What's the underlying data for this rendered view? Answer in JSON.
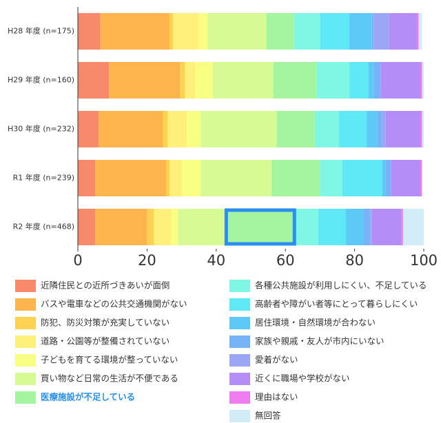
{
  "chart_data": {
    "type": "stacked-bar-horizontal",
    "categories": [
      "H28 年度 (n=175)",
      "H29 年度 (n=160)",
      "H30 年度 (n=232)",
      "R1 年度 (n=239)",
      "R2 年度 (n=468)"
    ],
    "xlim": [
      0,
      100
    ],
    "xticks": [
      0,
      20,
      40,
      60,
      80,
      100
    ],
    "highlight_color": "#2a8ff0",
    "series": [
      {
        "name": "近隣住民との近所づきあいが面倒",
        "color": "#f78a6b",
        "values": [
          6.5,
          9,
          6,
          5,
          5
        ]
      },
      {
        "name": "バスや電車などの公共交通機関がない",
        "color": "#ffb54d",
        "values": [
          20,
          20.5,
          18.5,
          20.5,
          15
        ]
      },
      {
        "name": "防犯、防災対策が充実していない",
        "color": "#ffd253",
        "values": [
          1,
          1.5,
          1.5,
          1,
          2
        ]
      },
      {
        "name": "道路・公園等が整備されていない",
        "color": "#fff07c",
        "values": [
          7.5,
          3,
          5.5,
          3.5,
          5
        ]
      },
      {
        "name": "子どもを育てる環境が整っていない",
        "color": "#f8ff82",
        "values": [
          2.5,
          5,
          4,
          5.5,
          2
        ]
      },
      {
        "name": "買い物など日常の生活が不便である",
        "color": "#d8fa95",
        "values": [
          17,
          17.5,
          22,
          20.5,
          13.5
        ]
      },
      {
        "name": "医療施設が不足している",
        "color": "#a5f5a0",
        "values": [
          8,
          12.5,
          11,
          14,
          20.5
        ],
        "highlight_index": 4
      },
      {
        "name": "各種公共施設が利用しにくい、不足している",
        "color": "#80f7e4",
        "values": [
          7.5,
          9.5,
          7,
          6.5,
          6.5
        ]
      },
      {
        "name": "高齢者や障がい者等にとって暮らしにくい",
        "color": "#5fe8f6",
        "values": [
          8.5,
          5.5,
          8,
          11.5,
          8
        ]
      },
      {
        "name": "居住環境・自然環境が合わない",
        "color": "#5cc9f6",
        "values": [
          6.5,
          1.5,
          3,
          1,
          5
        ]
      },
      {
        "name": "家族や親戚・友人が市内にいない",
        "color": "#74b4f7",
        "values": [
          0.5,
          2,
          1.5,
          1.5,
          2
        ]
      },
      {
        "name": "愛着がない",
        "color": "#9ba7f6",
        "values": [
          4.5,
          0,
          1,
          0,
          0.5
        ]
      },
      {
        "name": "近くに職場や学校がない",
        "color": "#b48df6",
        "values": [
          8,
          11.5,
          10,
          8.5,
          8.5
        ]
      },
      {
        "name": "理由はない",
        "color": "#f07df0",
        "values": [
          0.5,
          0.5,
          0.5,
          0.5,
          0.5
        ]
      },
      {
        "name": "無回答",
        "color": "#d2ecf8",
        "values": [
          1,
          0.5,
          0.5,
          0,
          6
        ]
      }
    ]
  }
}
